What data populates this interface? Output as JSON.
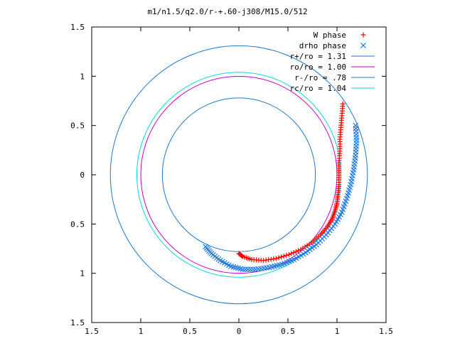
{
  "chart_data": {
    "type": "scatter",
    "title": "m1/n1.5/q2.0/r-+.60-j308/M15.0/512",
    "xlabel": "",
    "ylabel": "",
    "xlim": [
      -1.5,
      1.5
    ],
    "ylim": [
      -1.5,
      1.5
    ],
    "x_tick_labels": [
      "1.5",
      "1",
      "0.5",
      "0",
      "0.5",
      "1",
      "1.5"
    ],
    "y_tick_labels": [
      "1.5",
      "1",
      "0.5",
      "0",
      "0.5",
      "1",
      "1.5"
    ],
    "grid": false,
    "legend_position": "top-right",
    "series": [
      {
        "name": "W phase",
        "kind": "points",
        "marker": "plus",
        "color": "#ff0000",
        "x": [
          1.06,
          1.05,
          1.04,
          1.03,
          1.03,
          1.02,
          1.02,
          1.02,
          1.01,
          1.0,
          0.98,
          0.95,
          0.9,
          0.83,
          0.74,
          0.63,
          0.51,
          0.38,
          0.25,
          0.13,
          0.04,
          0.0
        ],
        "y": [
          0.72,
          0.6,
          0.48,
          0.36,
          0.24,
          0.12,
          0.02,
          -0.1,
          -0.2,
          -0.29,
          -0.37,
          -0.45,
          -0.53,
          -0.61,
          -0.69,
          -0.76,
          -0.81,
          -0.85,
          -0.87,
          -0.86,
          -0.83,
          -0.8
        ]
      },
      {
        "name": "drho phase",
        "kind": "points",
        "marker": "cross",
        "color": "#1e78dc",
        "x": [
          1.19,
          1.2,
          1.19,
          1.17,
          1.14,
          1.1,
          1.05,
          0.98,
          0.89,
          0.79,
          0.68,
          0.56,
          0.44,
          0.31,
          0.17,
          0.04,
          -0.08,
          -0.19,
          -0.28,
          -0.34
        ],
        "y": [
          0.5,
          0.35,
          0.2,
          0.05,
          -0.1,
          -0.24,
          -0.38,
          -0.5,
          -0.61,
          -0.71,
          -0.79,
          -0.86,
          -0.91,
          -0.94,
          -0.96,
          -0.96,
          -0.93,
          -0.87,
          -0.8,
          -0.73
        ]
      },
      {
        "name": "r+/ro = 1.31",
        "kind": "circle",
        "radius": 1.31,
        "color": "#1e78c8"
      },
      {
        "name": "ro/ro = 1.00",
        "kind": "circle",
        "radius": 1.0,
        "color": "#c800c8"
      },
      {
        "name": "r-/ro = .78",
        "kind": "circle",
        "radius": 0.78,
        "color": "#1e78c8"
      },
      {
        "name": "rc/ro = 1.04",
        "kind": "circle",
        "radius": 1.04,
        "color": "#00dcdc"
      }
    ]
  }
}
